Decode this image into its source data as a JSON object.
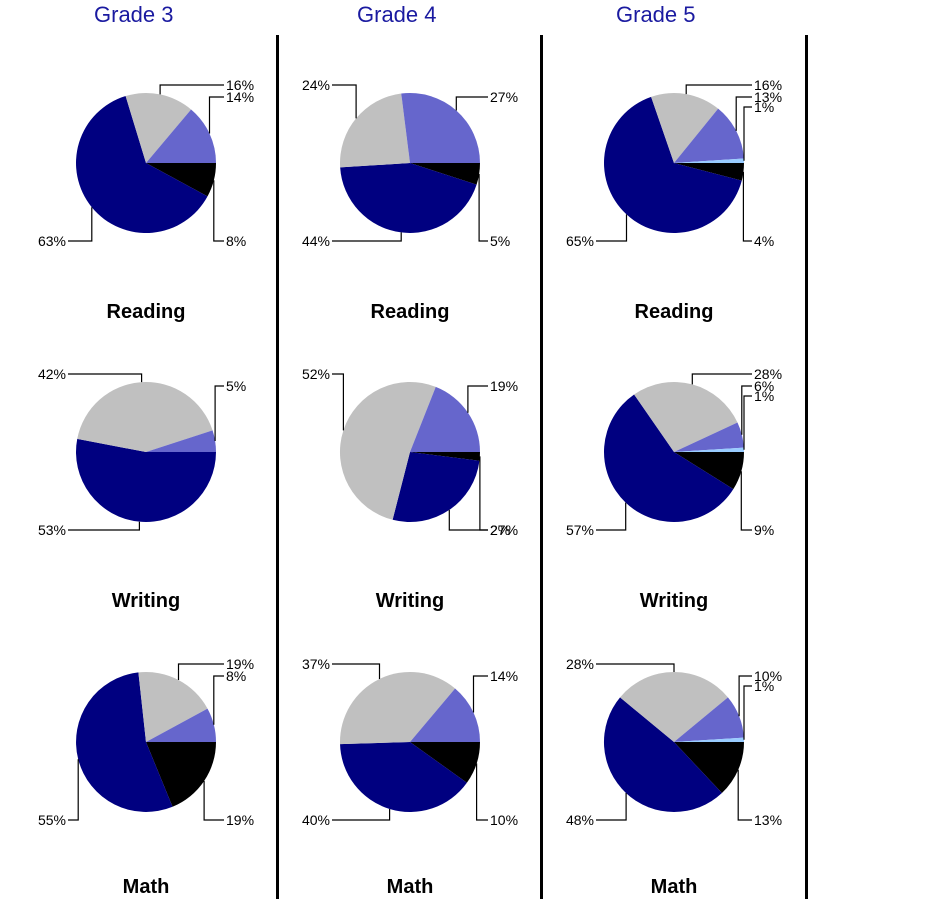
{
  "headers": [
    "Grade 3",
    "Grade 4",
    "Grade 5"
  ],
  "colors": {
    "header_text": "#1a1aa0",
    "divider": "#000000",
    "categories": [
      "#000080",
      "#c0c0c0",
      "#6666cc",
      "#99ccff",
      "#000000"
    ]
  },
  "chart_data": [
    {
      "type": "pie",
      "grade": "Grade 3",
      "subject": "Reading",
      "values": [
        63,
        16,
        14,
        0,
        8
      ],
      "labels": [
        "63%",
        "16%",
        "14%",
        "",
        "8%"
      ]
    },
    {
      "type": "pie",
      "grade": "Grade 4",
      "subject": "Reading",
      "values": [
        44,
        24,
        27,
        0,
        5
      ],
      "labels": [
        "44%",
        "24%",
        "27%",
        "",
        "5%"
      ]
    },
    {
      "type": "pie",
      "grade": "Grade 5",
      "subject": "Reading",
      "values": [
        65,
        16,
        13,
        1,
        4
      ],
      "labels": [
        "65%",
        "16%",
        "13%",
        "1%",
        "4%"
      ]
    },
    {
      "type": "pie",
      "grade": "Grade 3",
      "subject": "Writing",
      "values": [
        53,
        42,
        5,
        0,
        0
      ],
      "labels": [
        "53%",
        "42%",
        "5%",
        "",
        ""
      ]
    },
    {
      "type": "pie",
      "grade": "Grade 4",
      "subject": "Writing",
      "values": [
        27,
        52,
        19,
        0,
        2
      ],
      "labels": [
        "27%",
        "52%",
        "19%",
        "",
        "2%"
      ]
    },
    {
      "type": "pie",
      "grade": "Grade 5",
      "subject": "Writing",
      "values": [
        57,
        28,
        6,
        1,
        9
      ],
      "labels": [
        "57%",
        "28%",
        "6%",
        "1%",
        "9%"
      ]
    },
    {
      "type": "pie",
      "grade": "Grade 3",
      "subject": "Math",
      "values": [
        55,
        19,
        8,
        0,
        19
      ],
      "labels": [
        "55%",
        "19%",
        "8%",
        "",
        "19%"
      ]
    },
    {
      "type": "pie",
      "grade": "Grade 4",
      "subject": "Math",
      "values": [
        40,
        37,
        14,
        0,
        10
      ],
      "labels": [
        "40%",
        "37%",
        "14%",
        "",
        "10%"
      ]
    },
    {
      "type": "pie",
      "grade": "Grade 5",
      "subject": "Math",
      "values": [
        48,
        28,
        10,
        1,
        13
      ],
      "labels": [
        "48%",
        "28%",
        "10%",
        "1%",
        "13%"
      ]
    }
  ]
}
